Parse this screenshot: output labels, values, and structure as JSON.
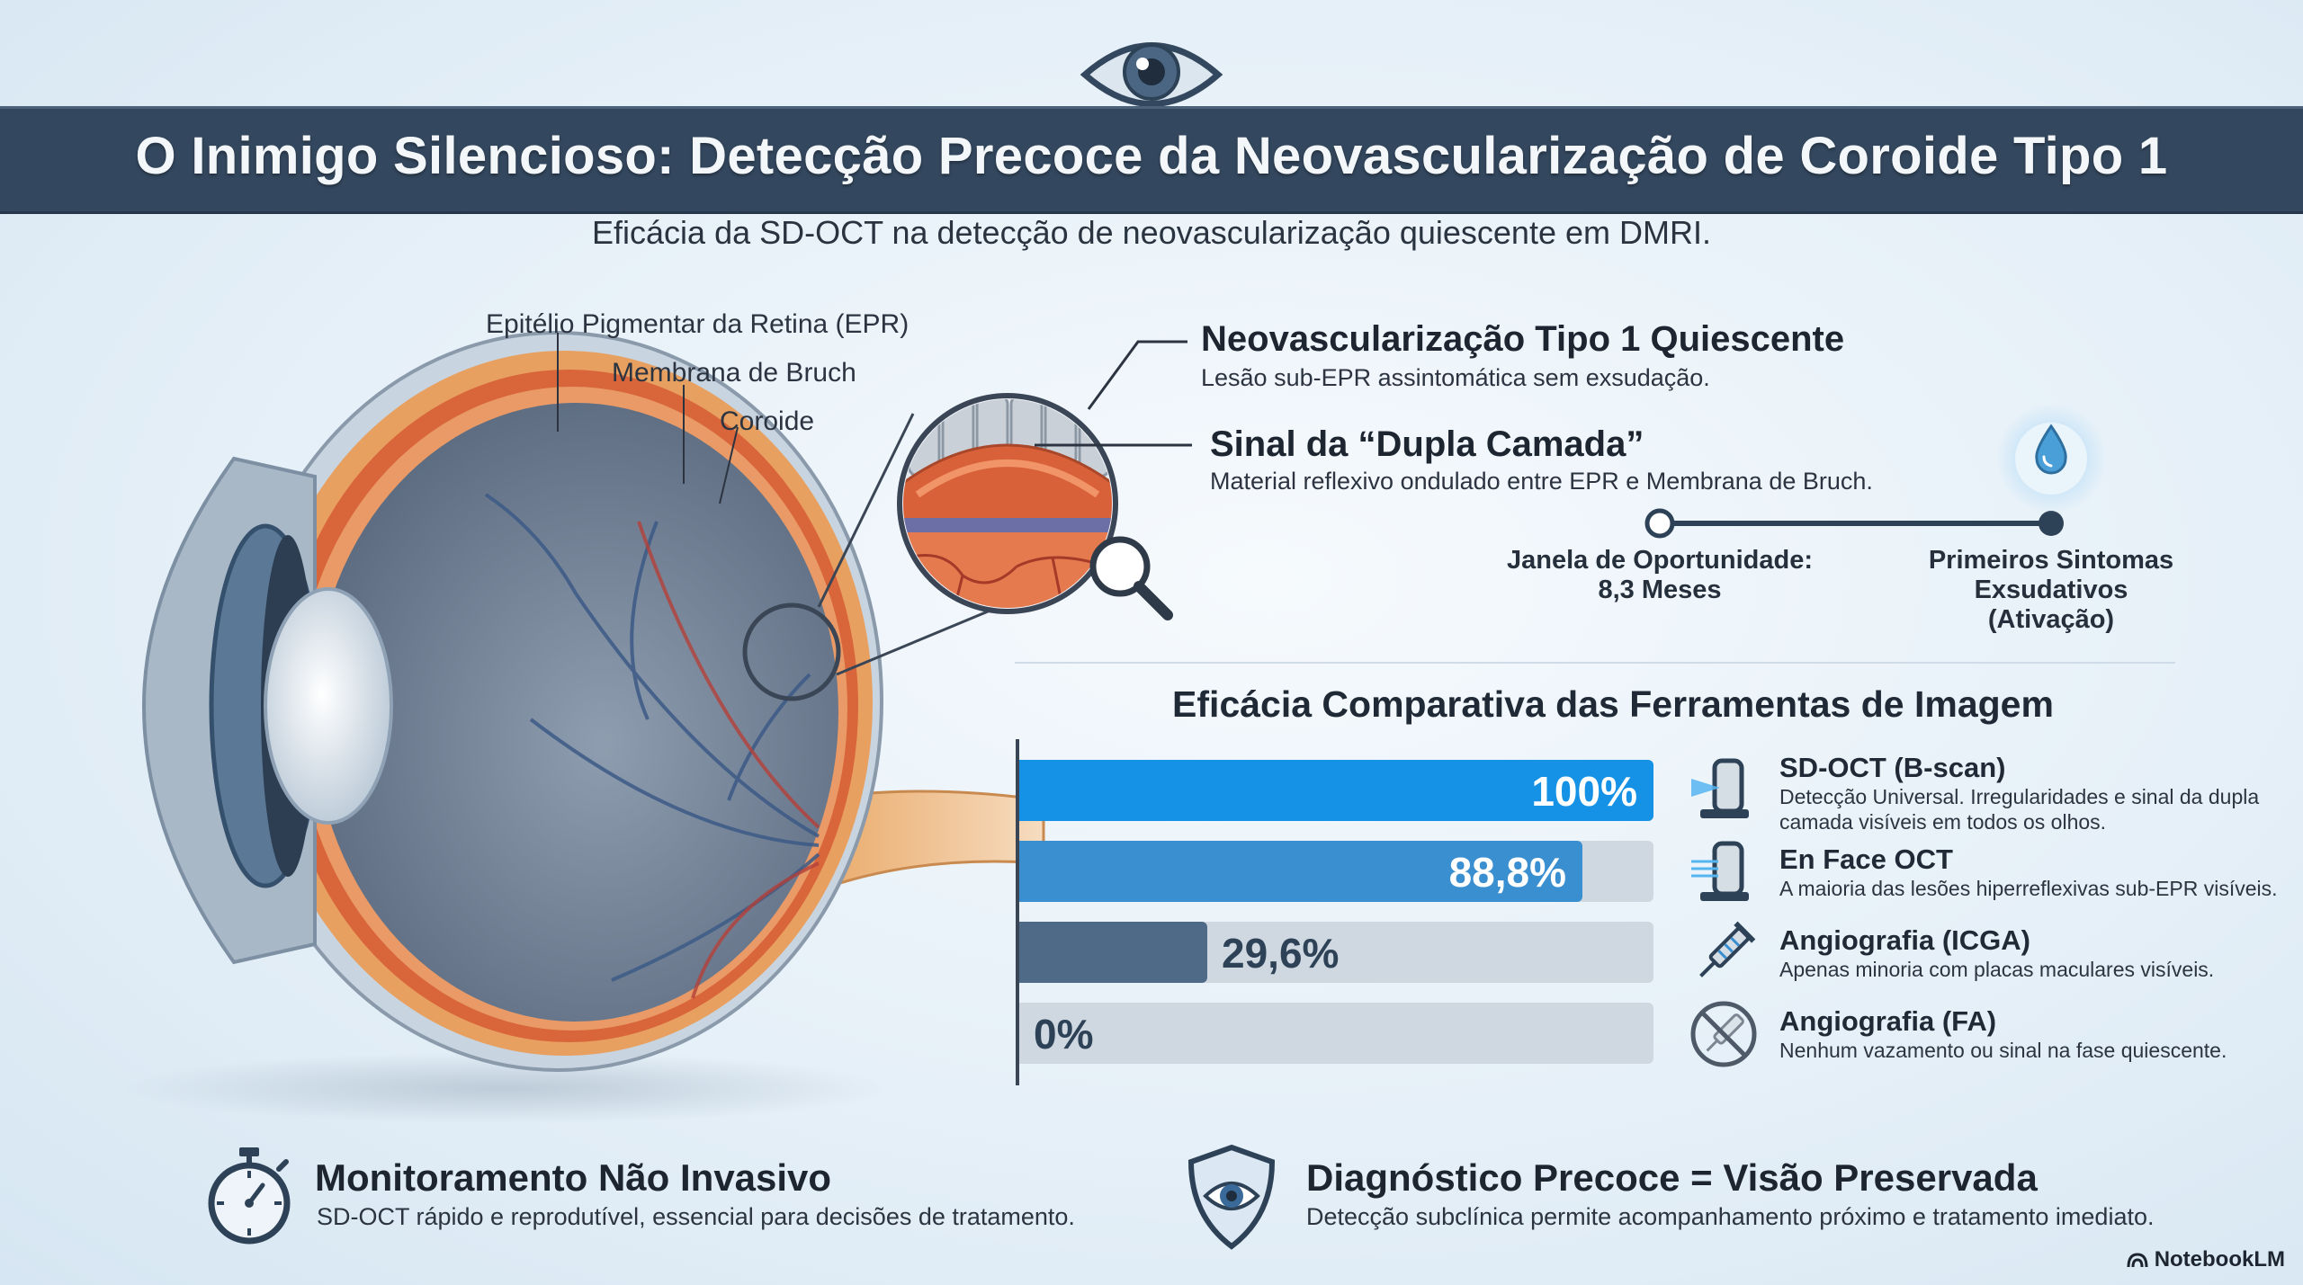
{
  "header": {
    "title": "O Inimigo Silencioso: Detecção Precoce da Neovascularização de Coroide Tipo 1",
    "subtitle": "Eficácia da SD-OCT na detecção de neovascularização quiescente em DMRI."
  },
  "anatomy": {
    "labels": [
      "Epitélio Pigmentar da Retina (EPR)",
      "Membrana de Bruch",
      "Coroide"
    ]
  },
  "callouts": [
    {
      "title": "Neovascularização Tipo 1 Quiescente",
      "desc": "Lesão sub-EPR assintomática sem exsudação."
    },
    {
      "title": "Sinal da “Dupla Camada”",
      "desc": "Material reflexivo ondulado entre EPR e Membrana de Bruch."
    }
  ],
  "timeline": {
    "start": "Janela de Oportunidade:\n8,3 Meses",
    "end": "Primeiros Sintomas\nExsudativos\n(Ativação)"
  },
  "chart_data": {
    "type": "bar",
    "title": "Eficácia Comparativa das Ferramentas de Imagem",
    "categories": [
      "SD-OCT (B-scan)",
      "En Face OCT",
      "Angiografia (ICGA)",
      "Angiografia (FA)"
    ],
    "values": [
      100,
      88.8,
      29.6,
      0
    ],
    "value_labels": [
      "100%",
      "88,8%",
      "29,6%",
      "0%"
    ],
    "xlim": [
      0,
      100
    ],
    "colors": [
      "#1592e6",
      "#3a8fd0",
      "#4e6a86",
      "#4e6a86"
    ]
  },
  "tools": [
    {
      "name": "SD-OCT (B-scan)",
      "desc": "Detecção Universal. Irregularidades e sinal da dupla camada visíveis em todos os olhos.",
      "icon": "oct-scanner-icon"
    },
    {
      "name": "En Face OCT",
      "desc": "A maioria das lesões hiperreflexivas sub-EPR visíveis.",
      "icon": "en-face-scanner-icon"
    },
    {
      "name": "Angiografia (ICGA)",
      "desc": "Apenas minoria com placas maculares visíveis.",
      "icon": "syringe-icon"
    },
    {
      "name": "Angiografia (FA)",
      "desc": "Nenhum vazamento ou sinal na fase quiescente.",
      "icon": "crossed-syringe-icon"
    }
  ],
  "bottom": [
    {
      "title": "Monitoramento Não Invasivo",
      "desc": "SD-OCT rápido e reprodutível, essencial para decisões de tratamento.",
      "icon": "stopwatch-icon"
    },
    {
      "title": "Diagnóstico Precoce = Visão Preservada",
      "desc": "Detecção subclínica permite acompanhamento próximo e tratamento imediato.",
      "icon": "shield-eye-icon"
    }
  ],
  "brand": "NotebookLM",
  "colors": {
    "title_bar": "#33475e",
    "accent_blue": "#1592e6",
    "retina_orange": "#e0763e"
  }
}
